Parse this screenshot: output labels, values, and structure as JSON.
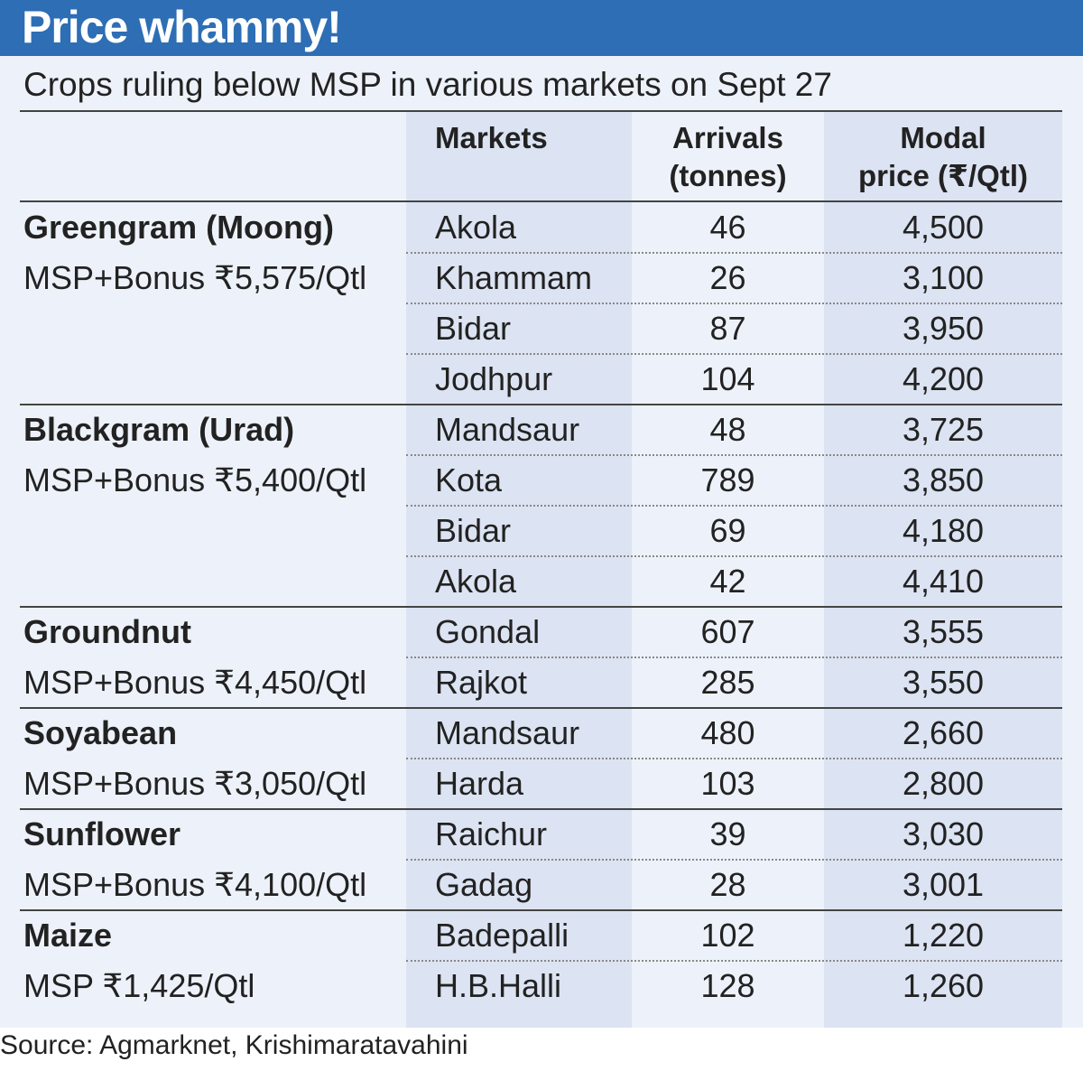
{
  "title": "Price whammy!",
  "subtitle": "Crops ruling below MSP in various markets on Sept 27",
  "source": "Source: Agmarknet, Krishimaratavahini",
  "colors": {
    "header": "#2d6eb5",
    "panel": "#edf2fa",
    "band": "#dce3f2"
  },
  "chart_data": {
    "type": "table",
    "columns": [
      "",
      "Markets",
      "Arrivals (tonnes)",
      "Modal price (₹/Qtl)"
    ],
    "column_lines": {
      "markets": "Markets",
      "arrivals": [
        "Arrivals",
        "(tonnes)"
      ],
      "price": [
        "Modal",
        "price (₹/Qtl)"
      ]
    },
    "groups": [
      {
        "crop": "Greengram (Moong)",
        "msp": "MSP+Bonus ₹5,575/Qtl",
        "rows": [
          {
            "market": "Akola",
            "arrivals": "46",
            "price": "4,500"
          },
          {
            "market": "Khammam",
            "arrivals": "26",
            "price": "3,100"
          },
          {
            "market": "Bidar",
            "arrivals": "87",
            "price": "3,950"
          },
          {
            "market": "Jodhpur",
            "arrivals": "104",
            "price": "4,200"
          }
        ]
      },
      {
        "crop": "Blackgram (Urad)",
        "msp": "MSP+Bonus ₹5,400/Qtl",
        "rows": [
          {
            "market": "Mandsaur",
            "arrivals": "48",
            "price": "3,725"
          },
          {
            "market": "Kota",
            "arrivals": "789",
            "price": "3,850"
          },
          {
            "market": "Bidar",
            "arrivals": "69",
            "price": "4,180"
          },
          {
            "market": "Akola",
            "arrivals": "42",
            "price": "4,410"
          }
        ]
      },
      {
        "crop": "Groundnut",
        "msp": "MSP+Bonus ₹4,450/Qtl",
        "rows": [
          {
            "market": "Gondal",
            "arrivals": "607",
            "price": "3,555"
          },
          {
            "market": "Rajkot",
            "arrivals": "285",
            "price": "3,550"
          }
        ]
      },
      {
        "crop": "Soyabean",
        "msp": "MSP+Bonus ₹3,050/Qtl",
        "rows": [
          {
            "market": "Mandsaur",
            "arrivals": "480",
            "price": "2,660"
          },
          {
            "market": "Harda",
            "arrivals": "103",
            "price": "2,800"
          }
        ]
      },
      {
        "crop": "Sunflower",
        "msp": "MSP+Bonus ₹4,100/Qtl",
        "rows": [
          {
            "market": "Raichur",
            "arrivals": "39",
            "price": "3,030"
          },
          {
            "market": "Gadag",
            "arrivals": "28",
            "price": "3,001"
          }
        ]
      },
      {
        "crop": "Maize",
        "msp": "MSP ₹1,425/Qtl",
        "rows": [
          {
            "market": "Badepalli",
            "arrivals": "102",
            "price": "1,220"
          },
          {
            "market": "H.B.Halli",
            "arrivals": "128",
            "price": "1,260"
          }
        ]
      }
    ]
  }
}
